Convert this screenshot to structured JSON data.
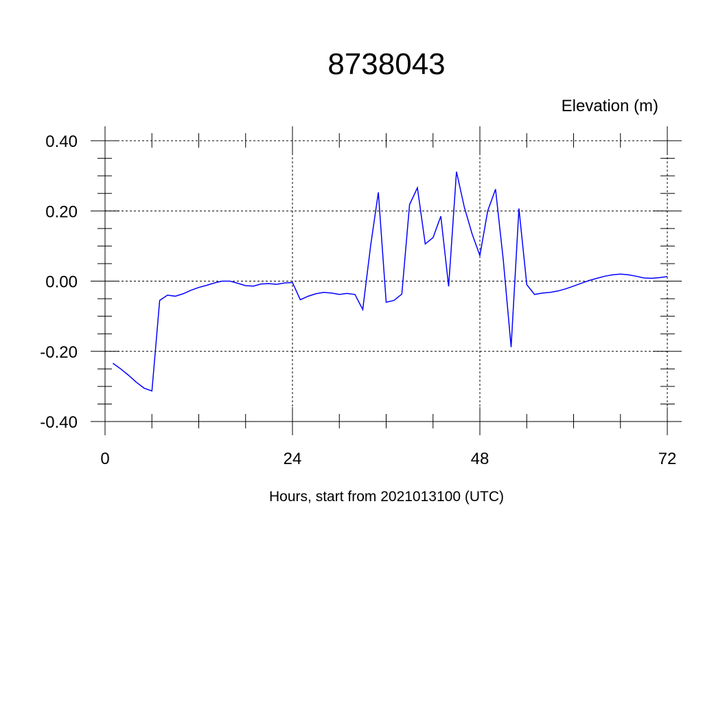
{
  "chart_data": {
    "type": "line",
    "title": "8738043",
    "ylabel": "Elevation (m)",
    "xlabel": "Hours, start from 2021013100 (UTC)",
    "xlim": [
      0,
      72
    ],
    "ylim": [
      -0.4,
      0.4
    ],
    "x_ticks": [
      0,
      24,
      48,
      72
    ],
    "x_tick_labels": [
      "0",
      "24",
      "48",
      "72"
    ],
    "y_ticks": [
      -0.4,
      -0.2,
      0.0,
      0.2,
      0.4
    ],
    "y_tick_labels": [
      "-0.40",
      "-0.20",
      "0.00",
      "0.20",
      "0.40"
    ],
    "grid": true,
    "series": [
      {
        "color": "#0000ff",
        "x": [
          1,
          2,
          3,
          4,
          5,
          6,
          7,
          8,
          9,
          10,
          11,
          12,
          13,
          14,
          15,
          16,
          17,
          18,
          19,
          20,
          21,
          22,
          23,
          24,
          25,
          26,
          27,
          28,
          29,
          30,
          31,
          32,
          33,
          34,
          35,
          36,
          37,
          38,
          39,
          40,
          41,
          42,
          43,
          44,
          45,
          46,
          47,
          48,
          49,
          50,
          51,
          52,
          53,
          54,
          55,
          56,
          57,
          58,
          59,
          60,
          61,
          62,
          63,
          64,
          65,
          66,
          67,
          68,
          69,
          70,
          71,
          72
        ],
        "y": [
          -0.234,
          -0.25,
          -0.268,
          -0.288,
          -0.305,
          -0.313,
          -0.055,
          -0.04,
          -0.043,
          -0.036,
          -0.026,
          -0.018,
          -0.012,
          -0.005,
          0.0,
          0.0,
          -0.006,
          -0.013,
          -0.014,
          -0.008,
          -0.007,
          -0.009,
          -0.005,
          -0.004,
          -0.053,
          -0.043,
          -0.036,
          -0.032,
          -0.034,
          -0.038,
          -0.035,
          -0.038,
          -0.081,
          0.1,
          0.253,
          -0.06,
          -0.055,
          -0.037,
          0.218,
          0.266,
          0.106,
          0.124,
          0.185,
          -0.015,
          0.312,
          0.211,
          0.135,
          0.073,
          0.2,
          0.262,
          0.06,
          -0.188,
          0.207,
          -0.01,
          -0.038,
          -0.034,
          -0.032,
          -0.028,
          -0.022,
          -0.014,
          -0.006,
          0.002,
          0.008,
          0.014,
          0.018,
          0.02,
          0.018,
          0.014,
          0.009,
          0.008,
          0.01,
          0.013
        ]
      }
    ]
  }
}
